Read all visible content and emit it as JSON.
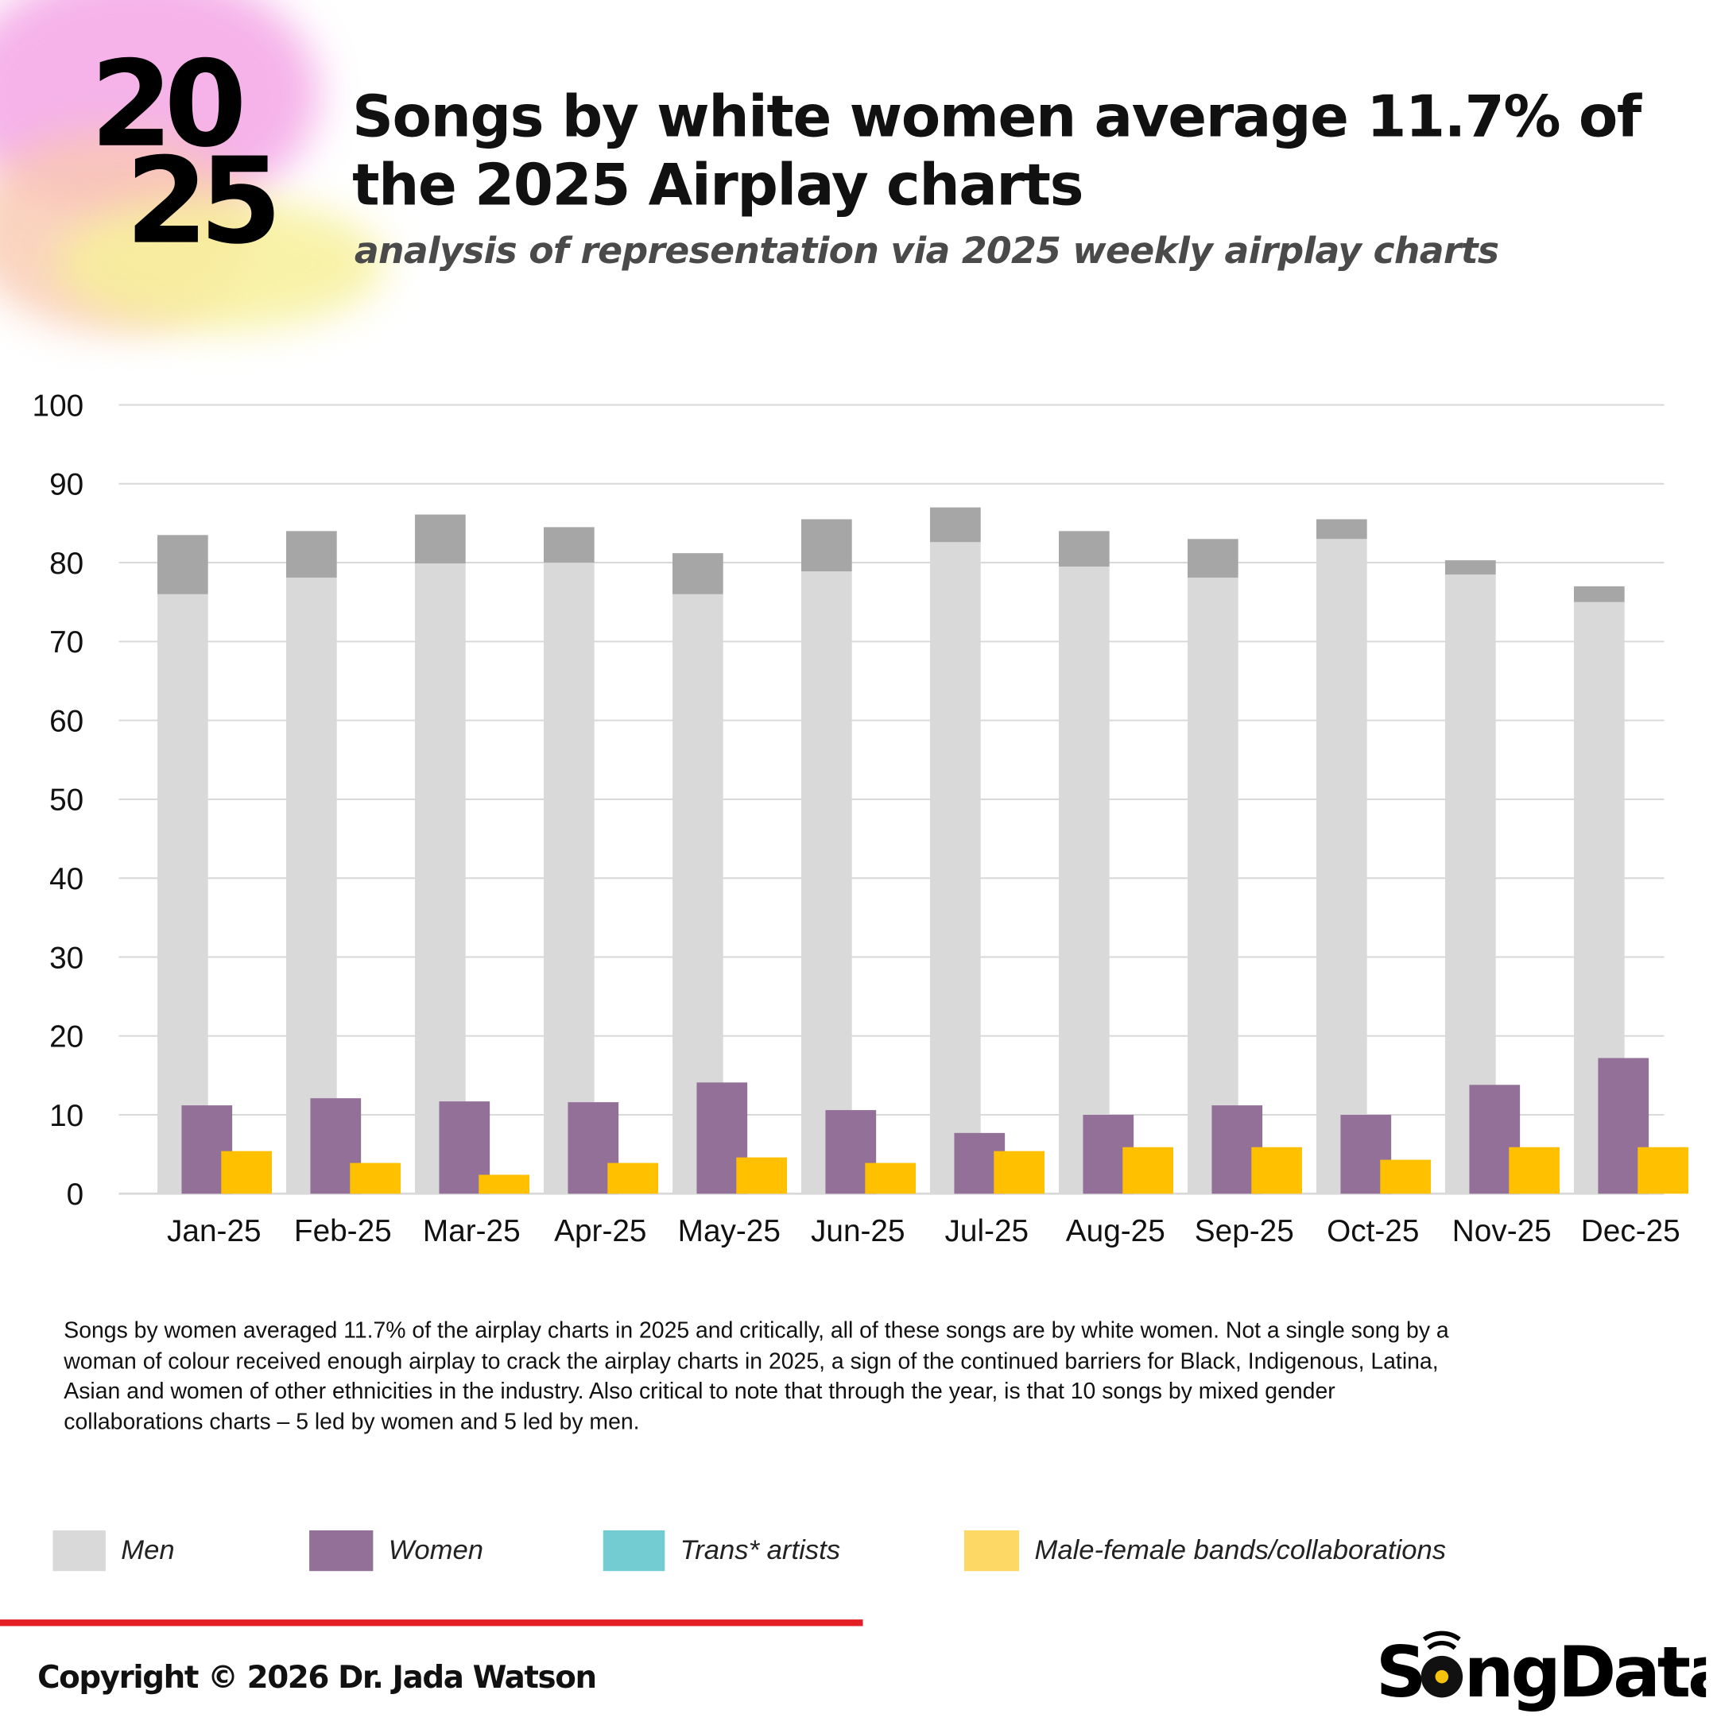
{
  "header": {
    "year_top": "20",
    "year_bottom": "25",
    "title": "Songs by white women average 11.7% of the 2025 Airplay charts",
    "subtitle": "analysis of representation via 2025 weekly airplay charts"
  },
  "chart_data": {
    "type": "bar",
    "title": "Songs by white women average 11.7% of the 2025 Airplay charts",
    "xlabel": "",
    "ylabel": "",
    "ylim": [
      0,
      100
    ],
    "yticks": [
      "0",
      "10",
      "20",
      "30",
      "40",
      "50",
      "60",
      "70",
      "80",
      "90",
      "100"
    ],
    "grid": true,
    "legend_placement": "bottom",
    "categories": [
      "Jan-25",
      "Feb-25",
      "Mar-25",
      "Apr-25",
      "May-25",
      "Jun-25",
      "Jul-25",
      "Aug-25",
      "Sep-25",
      "Oct-25",
      "Nov-25",
      "Dec-25"
    ],
    "series": [
      {
        "name": "Men",
        "color": "#d9d9d9",
        "values": [
          76.0,
          78.1,
          79.9,
          80.0,
          76.0,
          78.9,
          82.6,
          79.5,
          78.1,
          83.0,
          78.5,
          75.0
        ]
      },
      {
        "name": "Men (additional stacked segment)",
        "color": "#a6a6a6",
        "stacked_on": "Men",
        "values": [
          7.5,
          5.9,
          6.2,
          4.5,
          5.2,
          6.6,
          4.4,
          4.5,
          4.9,
          2.5,
          1.8,
          2.0
        ]
      },
      {
        "name": "Women",
        "color": "#937098",
        "values": [
          11.2,
          12.1,
          11.7,
          11.6,
          14.1,
          10.6,
          7.7,
          10.0,
          11.2,
          10.0,
          13.8,
          17.2
        ]
      },
      {
        "name": "Trans* artists",
        "color": "#74ccd3",
        "values": [
          0,
          0,
          0,
          0,
          0,
          0,
          0,
          0,
          0,
          0,
          0,
          0
        ]
      },
      {
        "name": "Male-female bands/collaborations",
        "color": "#ffc000",
        "values": [
          5.4,
          3.9,
          2.4,
          3.9,
          4.6,
          3.9,
          5.4,
          5.9,
          5.9,
          4.3,
          5.9,
          5.9
        ]
      }
    ]
  },
  "legend": [
    {
      "label": "Men",
      "color": "#d9d9d9"
    },
    {
      "label": "Women",
      "color": "#937098"
    },
    {
      "label": "Trans* artists",
      "color": "#74ccd3"
    },
    {
      "label": "Male-female bands/collaborations",
      "color": "#fdd865"
    }
  ],
  "note": "Songs by women averaged 11.7% of the airplay charts in 2025 and critically, all of these songs are by white women. Not a single song by a woman of colour received enough airplay to crack the airplay charts in 2025, a sign of the continued barriers for Black, Indigenous, Latina, Asian and women of other ethnicities in the industry. Also critical to note that through the year, is that 10 songs by mixed gender collaborations charts – 5 led by women and 5 led by men.",
  "footer": {
    "copyright": "Copyright © 2026 Dr. Jada Watson",
    "logo_text": "SongData",
    "accent": "#e31e24"
  }
}
